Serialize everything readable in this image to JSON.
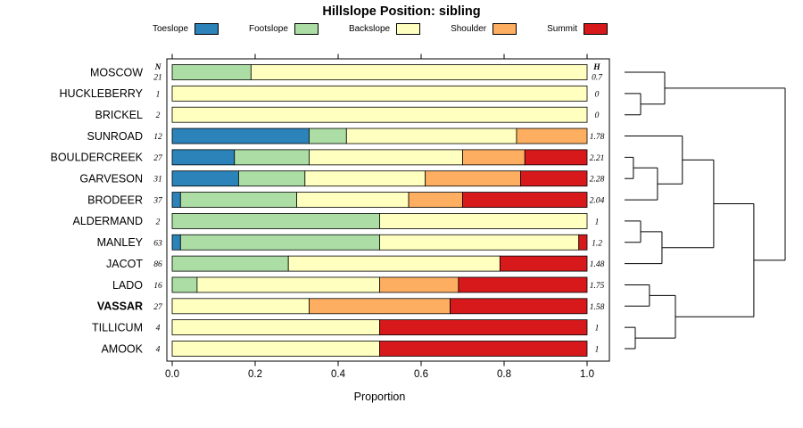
{
  "chart_data": {
    "type": "bar",
    "variant": "horizontal_stacked_proportion_with_dendrogram",
    "title": "Hillslope Position: sibling",
    "xlabel": "Proportion",
    "xlim": [
      0,
      1
    ],
    "x_ticks": [
      "0.0",
      "0.2",
      "0.4",
      "0.6",
      "0.8",
      "1.0"
    ],
    "legend_position": "top",
    "n_column_header": "N",
    "h_column_header": "H",
    "series": [
      {
        "name": "Toeslope",
        "color": "#2B83BA"
      },
      {
        "name": "Footslope",
        "color": "#ABDDA4"
      },
      {
        "name": "Backslope",
        "color": "#FFFFBF"
      },
      {
        "name": "Shoulder",
        "color": "#FDAE61"
      },
      {
        "name": "Summit",
        "color": "#D7191C"
      }
    ],
    "rows": [
      {
        "name": "MOSCOW",
        "n": "21",
        "h": "0.7",
        "bold": false,
        "proportions": [
          0,
          0.19,
          0.81,
          0,
          0
        ]
      },
      {
        "name": "HUCKLEBERRY",
        "n": "1",
        "h": "0",
        "bold": false,
        "proportions": [
          0,
          0,
          1,
          0,
          0
        ]
      },
      {
        "name": "BRICKEL",
        "n": "2",
        "h": "0",
        "bold": false,
        "proportions": [
          0,
          0,
          1,
          0,
          0
        ]
      },
      {
        "name": "SUNROAD",
        "n": "12",
        "h": "1.78",
        "bold": false,
        "proportions": [
          0.33,
          0.09,
          0.41,
          0.17,
          0
        ]
      },
      {
        "name": "BOULDERCREEK",
        "n": "27",
        "h": "2.21",
        "bold": false,
        "proportions": [
          0.15,
          0.18,
          0.37,
          0.15,
          0.15
        ]
      },
      {
        "name": "GARVESON",
        "n": "31",
        "h": "2.28",
        "bold": false,
        "proportions": [
          0.16,
          0.16,
          0.29,
          0.23,
          0.16
        ]
      },
      {
        "name": "BRODEER",
        "n": "37",
        "h": "2.04",
        "bold": false,
        "proportions": [
          0.02,
          0.28,
          0.27,
          0.13,
          0.3
        ]
      },
      {
        "name": "ALDERMAND",
        "n": "2",
        "h": "1",
        "bold": false,
        "proportions": [
          0,
          0.5,
          0.5,
          0,
          0
        ]
      },
      {
        "name": "MANLEY",
        "n": "63",
        "h": "1.2",
        "bold": false,
        "proportions": [
          0.02,
          0.48,
          0.48,
          0,
          0.02
        ]
      },
      {
        "name": "JACOT",
        "n": "86",
        "h": "1.48",
        "bold": false,
        "proportions": [
          0,
          0.28,
          0.51,
          0,
          0.21
        ]
      },
      {
        "name": "LADO",
        "n": "16",
        "h": "1.75",
        "bold": false,
        "proportions": [
          0,
          0.06,
          0.44,
          0.19,
          0.31
        ]
      },
      {
        "name": "VASSAR",
        "n": "27",
        "h": "1.58",
        "bold": true,
        "proportions": [
          0,
          0,
          0.33,
          0.34,
          0.33
        ]
      },
      {
        "name": "TILLICUM",
        "n": "4",
        "h": "1",
        "bold": false,
        "proportions": [
          0,
          0,
          0.5,
          0,
          0.5
        ]
      },
      {
        "name": "AMOOK",
        "n": "4",
        "h": "1",
        "bold": false,
        "proportions": [
          0,
          0,
          0.5,
          0,
          0.5
        ]
      }
    ],
    "dendrogram": {
      "tree": {
        "h": 1.0,
        "children": [
          {
            "h": 0.25,
            "children": [
              {
                "leaf": "MOSCOW"
              },
              {
                "h": 0.1,
                "children": [
                  {
                    "leaf": "HUCKLEBERRY"
                  },
                  {
                    "leaf": "BRICKEL"
                  }
                ]
              }
            ]
          },
          {
            "h": 0.805,
            "children": [
              {
                "h": 0.555,
                "children": [
                  {
                    "h": 0.36,
                    "children": [
                      {
                        "leaf": "SUNROAD"
                      },
                      {
                        "h": 0.205,
                        "children": [
                          {
                            "h": 0.055,
                            "children": [
                              {
                                "leaf": "BOULDERCREEK"
                              },
                              {
                                "leaf": "GARVESON"
                              }
                            ]
                          },
                          {
                            "leaf": "BRODEER"
                          }
                        ]
                      }
                    ]
                  },
                  {
                    "h": 0.233,
                    "children": [
                      {
                        "h": 0.1,
                        "children": [
                          {
                            "leaf": "ALDERMAND"
                          },
                          {
                            "leaf": "MANLEY"
                          }
                        ]
                      },
                      {
                        "leaf": "JACOT"
                      }
                    ]
                  }
                ]
              },
              {
                "h": 0.3167,
                "children": [
                  {
                    "h": 0.155,
                    "children": [
                      {
                        "leaf": "LADO"
                      },
                      {
                        "leaf": "VASSAR"
                      }
                    ]
                  },
                  {
                    "h": 0.0667,
                    "children": [
                      {
                        "leaf": "TILLICUM"
                      },
                      {
                        "leaf": "AMOOK"
                      }
                    ]
                  }
                ]
              }
            ]
          }
        ]
      }
    }
  }
}
